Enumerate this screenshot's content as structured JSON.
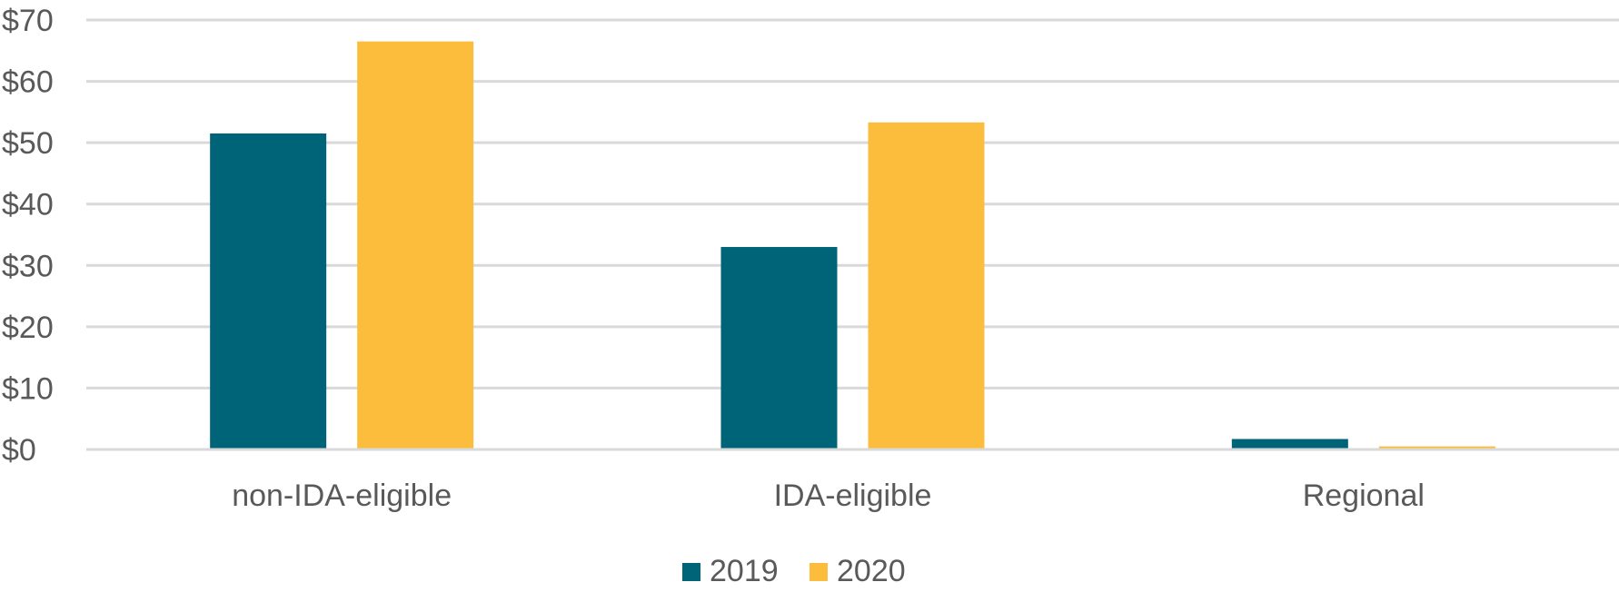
{
  "chart_data": {
    "type": "bar",
    "title": "",
    "xlabel": "",
    "ylabel": "",
    "categories": [
      "non-IDA-eligible",
      "IDA-eligible",
      "Regional"
    ],
    "series": [
      {
        "name": "2019",
        "color": "#006478",
        "values": [
          51.5,
          33.0,
          1.7
        ]
      },
      {
        "name": "2020",
        "color": "#fdbd3c",
        "values": [
          66.5,
          53.3,
          0.5
        ]
      }
    ],
    "ylim": [
      0,
      70
    ],
    "yticks": [
      0,
      10,
      20,
      30,
      40,
      50,
      60,
      70
    ],
    "ytick_labels": [
      "$0",
      "$10",
      "$20",
      "$30",
      "$40",
      "$50",
      "$60",
      "$70"
    ],
    "grid": true,
    "legend_position": "bottom"
  }
}
